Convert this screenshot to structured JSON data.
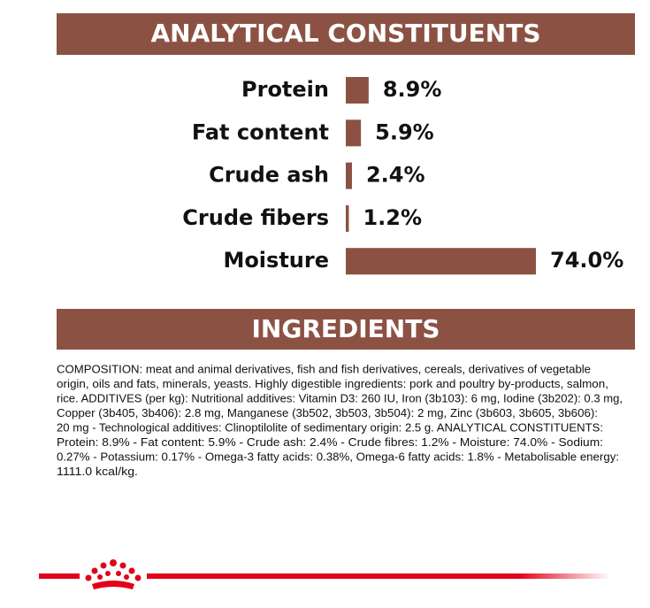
{
  "chart_data": {
    "type": "bar",
    "orientation": "horizontal",
    "title": "ANALYTICAL CONSTITUENTS",
    "categories": [
      "Protein",
      "Fat content",
      "Crude ash",
      "Crude fibers",
      "Moisture"
    ],
    "values": [
      8.9,
      5.9,
      2.4,
      1.2,
      74.0
    ],
    "value_labels": [
      "8.9%",
      "5.9%",
      "2.4%",
      "1.2%",
      "74.0%"
    ],
    "color": "#8b5244"
  },
  "ingredients": {
    "title": "INGREDIENTS",
    "lines": [
      "COMPOSITION: meat and animal derivatives, fish and fish derivatives, cereals, derivatives of vegetable",
      "origin, oils and fats, minerals, yeasts. Highly digestible ingredients: pork and poultry by-products, salmon,",
      "rice. ADDITIVES (per kg): Nutritional additives: Vitamin D3: 260 IU, Iron (3b103): 6 mg, Iodine (3b202): 0.3 mg,",
      "Copper (3b405, 3b406): 2.8 mg, Manganese (3b502, 3b503, 3b504): 2 mg, Zinc (3b603, 3b605, 3b606):",
      "20 mg - Technological additives: Clinoptilolite of sedimentary origin: 2.5 g. ANALYTICAL CONSTITUENTS:",
      "Protein: 8.9% - Fat content: 5.9% - Crude ash: 2.4% - Crude fibres: 1.2% - Moisture: 74.0% - Sodium:",
      "0.27% - Potassium: 0.17% - Omega-3 fatty acids: 0.38%, Omega-6 fatty acids: 1.8% - Metabolisable energy:",
      "1111.0 kcal/kg."
    ]
  }
}
